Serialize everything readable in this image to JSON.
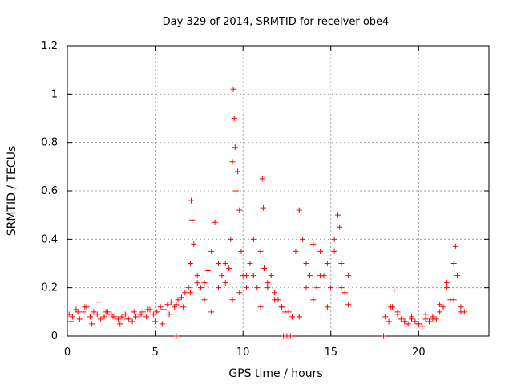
{
  "chart_data": {
    "type": "scatter",
    "title": "Day 329 of 2014, SRMTID for receiver obe4",
    "xlabel": "GPS time / hours",
    "ylabel": "SRMTID / TECUs",
    "xlim": [
      0,
      24
    ],
    "ylim": [
      0,
      1.2
    ],
    "x_ticks": [
      0,
      5,
      10,
      15,
      20
    ],
    "x_tick_labels": [
      "0",
      "5",
      "10",
      "15",
      "20"
    ],
    "y_ticks": [
      0,
      0.2,
      0.4,
      0.6,
      0.8,
      1.0,
      1.2
    ],
    "y_tick_labels": [
      "0",
      "0.2",
      "0.4",
      "0.6",
      "0.8",
      "1",
      "1.2"
    ],
    "grid": true,
    "marker": "+",
    "color": "#ff0000",
    "series": [
      {
        "name": "SRMTID",
        "x": [
          0.1,
          0.3,
          0.5,
          0.7,
          0.9,
          1.1,
          1.3,
          1.5,
          1.7,
          1.9,
          2.1,
          2.3,
          2.5,
          2.7,
          2.9,
          3.1,
          3.3,
          3.5,
          3.7,
          3.9,
          4.1,
          4.3,
          4.5,
          4.7,
          4.9,
          5.1,
          5.3,
          5.5,
          5.7,
          5.9,
          6.1,
          6.3,
          6.5,
          6.7,
          6.9,
          7.0,
          7.05,
          7.1,
          7.2,
          7.4,
          7.6,
          7.8,
          8.0,
          8.2,
          8.4,
          8.6,
          8.8,
          9.0,
          9.2,
          9.3,
          9.4,
          9.45,
          9.5,
          9.55,
          9.6,
          9.7,
          9.8,
          9.9,
          10.0,
          10.2,
          10.4,
          10.6,
          10.8,
          11.0,
          11.1,
          11.15,
          11.2,
          11.4,
          11.6,
          11.8,
          12.0,
          12.2,
          12.4,
          12.6,
          12.8,
          13.0,
          13.2,
          13.4,
          13.6,
          13.8,
          14.0,
          14.2,
          14.4,
          14.6,
          14.8,
          15.0,
          15.2,
          15.4,
          15.5,
          15.6,
          15.8,
          16.0,
          18.1,
          18.3,
          18.5,
          18.6,
          18.8,
          19.0,
          19.2,
          19.4,
          19.6,
          19.8,
          20.0,
          20.2,
          20.4,
          20.6,
          20.8,
          21.0,
          21.2,
          21.4,
          21.6,
          21.8,
          22.0,
          22.1,
          22.2,
          22.4,
          22.6,
          0.2,
          0.6,
          1.0,
          1.4,
          1.8,
          2.2,
          2.6,
          3.0,
          3.4,
          3.8,
          4.2,
          4.6,
          5.0,
          5.4,
          5.8,
          6.2,
          6.6,
          7.0,
          7.4,
          7.8,
          8.2,
          8.6,
          9.0,
          9.4,
          9.8,
          10.2,
          10.6,
          11.0,
          11.4,
          11.8,
          12.2,
          13.2,
          13.6,
          14.0,
          14.4,
          14.8,
          15.2,
          15.6,
          16.0,
          18.4,
          18.8,
          19.2,
          19.6,
          20.0,
          20.4,
          20.8,
          21.2,
          21.6,
          22.0,
          22.4,
          12.3,
          12.5,
          12.7,
          18.0,
          6.2
        ],
        "y": [
          0.09,
          0.08,
          0.11,
          0.07,
          0.1,
          0.12,
          0.08,
          0.1,
          0.09,
          0.07,
          0.08,
          0.1,
          0.09,
          0.08,
          0.07,
          0.08,
          0.09,
          0.07,
          0.06,
          0.08,
          0.09,
          0.1,
          0.08,
          0.11,
          0.09,
          0.1,
          0.12,
          0.11,
          0.13,
          0.14,
          0.12,
          0.15,
          0.16,
          0.18,
          0.2,
          0.3,
          0.56,
          0.48,
          0.38,
          0.25,
          0.2,
          0.22,
          0.27,
          0.35,
          0.47,
          0.3,
          0.25,
          0.22,
          0.28,
          0.4,
          0.72,
          1.02,
          0.9,
          0.78,
          0.6,
          0.68,
          0.52,
          0.35,
          0.25,
          0.2,
          0.3,
          0.25,
          0.2,
          0.35,
          0.65,
          0.53,
          0.28,
          0.2,
          0.25,
          0.18,
          0.15,
          0.12,
          0.1,
          0.1,
          0.08,
          0.35,
          0.52,
          0.4,
          0.3,
          0.25,
          0.38,
          0.2,
          0.35,
          0.25,
          0.3,
          0.2,
          0.4,
          0.5,
          0.45,
          0.3,
          0.18,
          0.25,
          0.08,
          0.06,
          0.12,
          0.19,
          0.1,
          0.07,
          0.06,
          0.05,
          0.07,
          0.06,
          0.05,
          0.04,
          0.07,
          0.06,
          0.08,
          0.07,
          0.1,
          0.12,
          0.2,
          0.15,
          0.3,
          0.37,
          0.25,
          0.12,
          0.1,
          0.06,
          0.1,
          0.12,
          0.05,
          0.14,
          0.1,
          0.08,
          0.05,
          0.07,
          0.1,
          0.09,
          0.11,
          0.06,
          0.05,
          0.09,
          0.13,
          0.12,
          0.18,
          0.22,
          0.15,
          0.1,
          0.2,
          0.3,
          0.15,
          0.18,
          0.25,
          0.4,
          0.12,
          0.22,
          0.15,
          0.12,
          0.08,
          0.2,
          0.15,
          0.25,
          0.12,
          0.35,
          0.2,
          0.13,
          0.12,
          0.09,
          0.06,
          0.08,
          0.05,
          0.09,
          0.07,
          0.13,
          0.22,
          0.15,
          0.1,
          0.0,
          0.0,
          0.0,
          0.0,
          0.0
        ]
      }
    ]
  }
}
